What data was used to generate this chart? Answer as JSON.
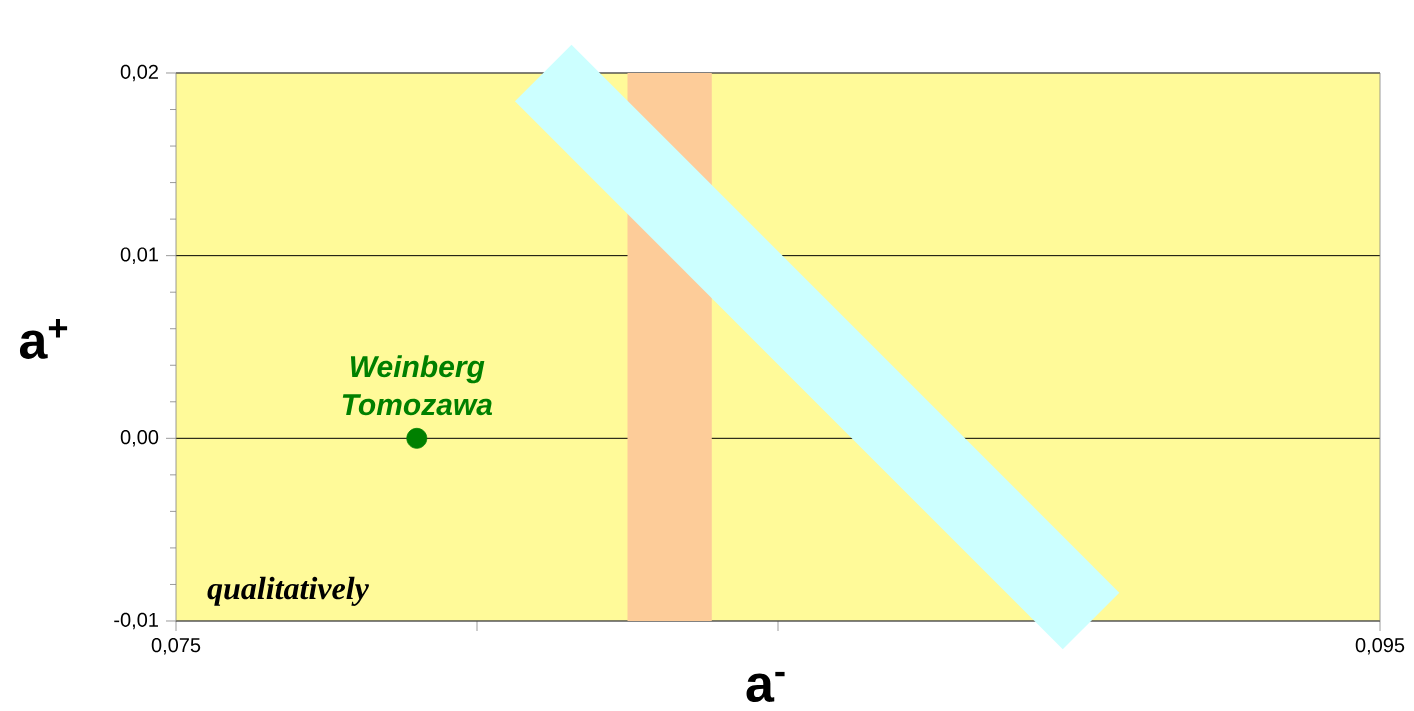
{
  "chart_data": {
    "type": "scatter",
    "xlabel": "a$^{-}$",
    "ylabel": "a$^{+}$",
    "xlim": [
      0.075,
      0.095
    ],
    "ylim": [
      -0.01,
      0.02
    ],
    "xticks": [
      {
        "value": 0.075,
        "label": "0,075"
      },
      {
        "value": 0.08,
        "label": null
      },
      {
        "value": 0.085,
        "label": null
      },
      {
        "value": 0.09,
        "label": null
      },
      {
        "value": 0.095,
        "label": "0,095"
      }
    ],
    "yticks": [
      {
        "value": -0.01,
        "label": "-0,01"
      },
      {
        "value": 0,
        "label": "0,00"
      },
      {
        "value": 0.01,
        "label": "0,01"
      },
      {
        "value": 0.02,
        "label": "0,02"
      }
    ],
    "grid": "y",
    "bands": [
      {
        "axis": "x",
        "from": 0.0825,
        "to": 0.0839,
        "color": "#fdcc99"
      }
    ],
    "series": [
      {
        "type": "line",
        "color": "#ccffff",
        "x": [
          0.0811,
          0.0902
        ],
        "values": [
          0.02,
          -0.01
        ]
      },
      {
        "marker": "circle",
        "name": "Weinberg Tomozawa",
        "color": "#008000",
        "x": [
          0.079
        ],
        "values": [
          0.0
        ]
      }
    ],
    "annotations": [
      "qualitatively"
    ]
  }
}
